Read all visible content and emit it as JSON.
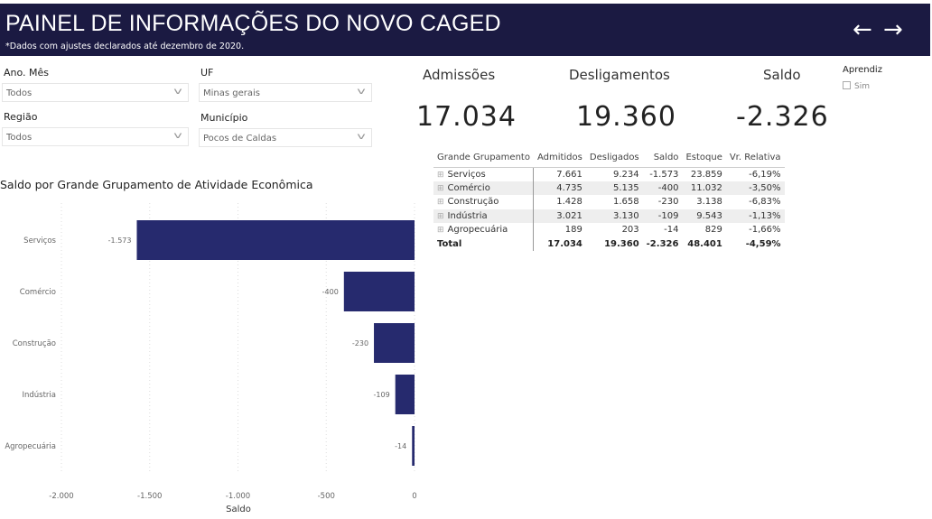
{
  "header": {
    "title": "PAINEL DE INFORMAÇÕES DO NOVO CAGED",
    "subtitle": "*Dados com ajustes declarados até dezembro de 2020.",
    "back": "←",
    "forward": "→"
  },
  "filters": [
    {
      "label": "Ano. Mês",
      "value": "Todos"
    },
    {
      "label": "UF",
      "value": "Minas gerais"
    },
    {
      "label": "Região",
      "value": "Todos"
    },
    {
      "label": "Município",
      "value": "Pocos de Caldas"
    }
  ],
  "kpis": [
    {
      "label": "Admissões",
      "value": "17.034"
    },
    {
      "label": "Desligamentos",
      "value": "19.360"
    },
    {
      "label": "Saldo",
      "value": "-2.326"
    }
  ],
  "aprendiz": {
    "label": "Aprendiz",
    "option": "Sim"
  },
  "table": {
    "headers": [
      "Grande Grupamento",
      "Admitidos",
      "Desligados",
      "Saldo",
      "Estoque",
      "Vr. Relativa"
    ],
    "rows": [
      [
        "Serviços",
        "7.661",
        "9.234",
        "-1.573",
        "23.859",
        "-6,19%"
      ],
      [
        "Comércio",
        "4.735",
        "5.135",
        "-400",
        "11.032",
        "-3,50%"
      ],
      [
        "Construção",
        "1.428",
        "1.658",
        "-230",
        "3.138",
        "-6,83%"
      ],
      [
        "Indústria",
        "3.021",
        "3.130",
        "-109",
        "9.543",
        "-1,13%"
      ],
      [
        "Agropecuária",
        "189",
        "203",
        "-14",
        "829",
        "-1,66%"
      ]
    ],
    "total": [
      "Total",
      "17.034",
      "19.360",
      "-2.326",
      "48.401",
      "-4,59%"
    ]
  },
  "chart_data": {
    "type": "bar",
    "orientation": "horizontal",
    "title": "Saldo por Grande Grupamento de Atividade Econômica",
    "categories": [
      "Serviços",
      "Comércio",
      "Construção",
      "Indústria",
      "Agropecuária"
    ],
    "values": [
      -1573,
      -400,
      -230,
      -109,
      -14
    ],
    "labels": [
      "-1.573",
      "-400",
      "-230",
      "-109",
      "-14"
    ],
    "xlabel": "Saldo",
    "xlim": [
      -2000,
      0
    ],
    "xticks": [
      -2000,
      -1500,
      -1000,
      -500,
      0
    ],
    "xtick_labels": [
      "-2.000",
      "-1.500",
      "-1.000",
      "-500",
      "0"
    ],
    "color": "#262a6e"
  }
}
